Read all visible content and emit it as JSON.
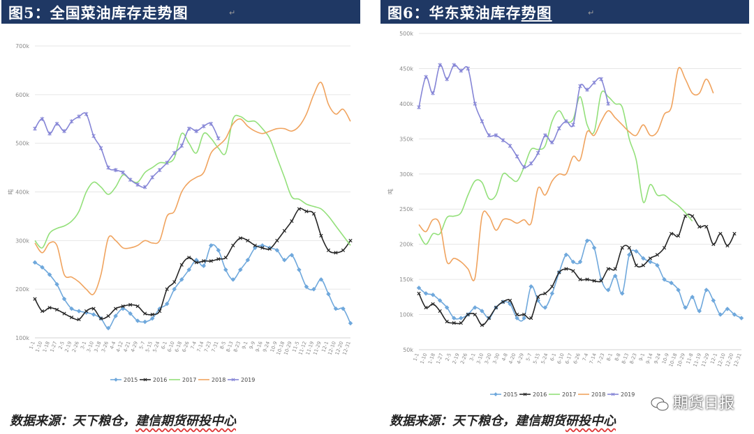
{
  "panels": [
    {
      "title": "图5：全国菜油库存走势图",
      "source": "数据来源：天下粮仓，建信期货研投中心",
      "source_plain": "数据来源：天下粮仓，",
      "source_underlined": "建信期货研投中心"
    },
    {
      "title": "图6：华东菜油库存势图",
      "title_plain": "图6：华东菜油库存",
      "title_underlined": "势图",
      "source": "数据来源：天下粮仓，建信期货研投中心",
      "source_plain": "数据来源：天下粮仓，建信期货",
      "source_underlined": "研投中心",
      "watermark": "期货日报"
    }
  ],
  "series_colors": {
    "2015": "#6fa8dc",
    "2016": "#262626",
    "2017": "#93e07a",
    "2018": "#f0a35e",
    "2019": "#8585d6"
  },
  "chart_data": [
    {
      "type": "line",
      "title": "",
      "ylabel": "吨",
      "xlabel": "",
      "ylim": [
        100000,
        700000
      ],
      "yticks": [
        100000,
        200000,
        300000,
        400000,
        500000,
        600000,
        700000
      ],
      "ytick_labels": [
        "100k",
        "200k",
        "300k",
        "400k",
        "500k",
        "600k",
        "700k"
      ],
      "x_tick_labels": [
        "1-1",
        "1-10",
        "1-18",
        "1-27",
        "2-5",
        "2-19",
        "2-26",
        "3-1",
        "3-10",
        "3-18",
        "3-26",
        "4-4",
        "4-12",
        "4-21",
        "4-29",
        "5-7",
        "5-15",
        "5-24",
        "6-1",
        "6-10",
        "6-18",
        "6-26",
        "7-4",
        "7-14",
        "7-23",
        "7-31",
        "8-5",
        "8-13",
        "8-23",
        "9-1",
        "9-9",
        "9-16",
        "9-24",
        "10-9",
        "10-18",
        "10-29",
        "11-5",
        "11-12",
        "11-19",
        "11-29",
        "12-1",
        "12-10",
        "12-20",
        "12-31"
      ],
      "legend_position": "bottom",
      "grid": true,
      "series": [
        {
          "name": "2015",
          "markers": true,
          "values": [
            255000,
            245000,
            230000,
            210000,
            180000,
            160000,
            155000,
            152000,
            148000,
            140000,
            120000,
            145000,
            160000,
            150000,
            135000,
            133000,
            140000,
            160000,
            170000,
            200000,
            220000,
            240000,
            260000,
            248000,
            290000,
            280000,
            240000,
            220000,
            240000,
            260000,
            285000,
            290000,
            285000,
            280000,
            260000,
            270000,
            240000,
            205000,
            200000,
            220000,
            190000,
            160000,
            160000,
            130000
          ]
        },
        {
          "name": "2016",
          "markers": true,
          "values": [
            180000,
            155000,
            162000,
            158000,
            150000,
            142000,
            138000,
            155000,
            160000,
            140000,
            145000,
            160000,
            165000,
            168000,
            165000,
            150000,
            148000,
            155000,
            200000,
            215000,
            250000,
            265000,
            255000,
            258000,
            258000,
            262000,
            265000,
            290000,
            305000,
            300000,
            290000,
            285000,
            283000,
            300000,
            320000,
            340000,
            365000,
            360000,
            355000,
            310000,
            280000,
            275000,
            280000,
            300000
          ]
        },
        {
          "name": "2017",
          "markers": false,
          "values": [
            300000,
            285000,
            315000,
            325000,
            330000,
            340000,
            360000,
            400000,
            420000,
            410000,
            395000,
            410000,
            435000,
            425000,
            420000,
            440000,
            450000,
            460000,
            460000,
            470000,
            520000,
            500000,
            480000,
            520000,
            510000,
            490000,
            480000,
            550000,
            555000,
            545000,
            545000,
            530000,
            510000,
            470000,
            430000,
            390000,
            385000,
            375000,
            370000,
            365000,
            350000,
            330000,
            310000,
            290000
          ]
        },
        {
          "name": "2018",
          "markers": false,
          "values": [
            295000,
            275000,
            295000,
            290000,
            230000,
            225000,
            215000,
            200000,
            190000,
            230000,
            305000,
            300000,
            285000,
            285000,
            290000,
            300000,
            295000,
            300000,
            350000,
            360000,
            400000,
            420000,
            430000,
            440000,
            480000,
            495000,
            510000,
            540000,
            550000,
            535000,
            525000,
            520000,
            525000,
            530000,
            530000,
            525000,
            535000,
            560000,
            600000,
            625000,
            580000,
            560000,
            570000,
            545000
          ]
        },
        {
          "name": "2019",
          "markers": true,
          "values": [
            530000,
            550000,
            520000,
            540000,
            525000,
            545000,
            555000,
            560000,
            515000,
            490000,
            450000,
            445000,
            440000,
            425000,
            415000,
            410000,
            430000,
            445000,
            460000,
            480000,
            495000,
            530000,
            525000,
            535000,
            540000,
            510000
          ]
        }
      ]
    },
    {
      "type": "line",
      "title": "",
      "ylabel": "吨",
      "xlabel": "",
      "ylim": [
        50000,
        500000
      ],
      "yticks": [
        50000,
        100000,
        150000,
        200000,
        250000,
        300000,
        350000,
        400000,
        450000,
        500000
      ],
      "ytick_labels": [
        "50k",
        "100k",
        "150k",
        "200k",
        "250k",
        "300k",
        "350k",
        "400k",
        "450k",
        "500k"
      ],
      "x_tick_labels": [
        "1-1",
        "1-10",
        "1-18",
        "1-27",
        "2-5",
        "2-19",
        "2-26",
        "3-1",
        "3-10",
        "3-20",
        "3-30",
        "4-8",
        "4-20",
        "4-29",
        "5-7",
        "5-15",
        "5-24",
        "6-1",
        "6-10",
        "6-17",
        "6-26",
        "7-4",
        "7-14",
        "7-23",
        "8-1",
        "8-8",
        "8-13",
        "8-23",
        "9-1",
        "9-14",
        "9-24",
        "10-9",
        "10-18",
        "10-29",
        "11-8",
        "11-19",
        "11-29",
        "12-1",
        "12-10",
        "12-20",
        "12-31"
      ],
      "legend_position": "bottom",
      "grid": true,
      "series": [
        {
          "name": "2015",
          "markers": true,
          "values": [
            138000,
            130000,
            128000,
            120000,
            110000,
            95000,
            95000,
            100000,
            110000,
            105000,
            95000,
            110000,
            118000,
            115000,
            95000,
            95000,
            140000,
            120000,
            110000,
            130000,
            160000,
            185000,
            175000,
            175000,
            205000,
            195000,
            150000,
            135000,
            155000,
            130000,
            185000,
            190000,
            180000,
            175000,
            170000,
            150000,
            145000,
            135000,
            110000,
            125000,
            105000,
            135000,
            120000,
            100000,
            108000,
            100000,
            95000
          ]
        },
        {
          "name": "2016",
          "markers": true,
          "values": [
            130000,
            110000,
            115000,
            105000,
            90000,
            88000,
            88000,
            100000,
            100000,
            85000,
            95000,
            110000,
            118000,
            120000,
            100000,
            100000,
            95000,
            125000,
            130000,
            140000,
            160000,
            165000,
            162000,
            150000,
            150000,
            148000,
            148000,
            165000,
            165000,
            195000,
            195000,
            170000,
            170000,
            180000,
            185000,
            195000,
            215000,
            212000,
            240000,
            240000,
            225000,
            225000,
            200000,
            215000,
            198000,
            215000
          ]
        },
        {
          "name": "2017",
          "markers": false,
          "values": [
            215000,
            200000,
            215000,
            215000,
            238000,
            240000,
            245000,
            270000,
            290000,
            288000,
            265000,
            270000,
            300000,
            295000,
            290000,
            310000,
            335000,
            335000,
            340000,
            375000,
            390000,
            375000,
            378000,
            410000,
            370000,
            360000,
            415000,
            410000,
            400000,
            395000,
            350000,
            320000,
            260000,
            285000,
            270000,
            270000,
            262000,
            255000,
            245000,
            233000
          ]
        },
        {
          "name": "2018",
          "markers": false,
          "values": [
            228000,
            218000,
            235000,
            228000,
            175000,
            180000,
            175000,
            165000,
            152000,
            240000,
            240000,
            220000,
            235000,
            235000,
            230000,
            235000,
            230000,
            280000,
            270000,
            290000,
            300000,
            300000,
            325000,
            320000,
            360000,
            355000,
            375000,
            390000,
            380000,
            370000,
            360000,
            355000,
            370000,
            355000,
            360000,
            385000,
            395000,
            450000,
            435000,
            415000,
            415000,
            435000,
            415000
          ]
        },
        {
          "name": "2019",
          "markers": true,
          "values": [
            395000,
            438000,
            415000,
            455000,
            435000,
            455000,
            447000,
            450000,
            400000,
            375000,
            355000,
            355000,
            348000,
            340000,
            325000,
            310000,
            315000,
            330000,
            355000,
            345000,
            365000,
            375000,
            370000,
            425000,
            420000,
            430000,
            435000,
            400000
          ]
        }
      ]
    }
  ]
}
